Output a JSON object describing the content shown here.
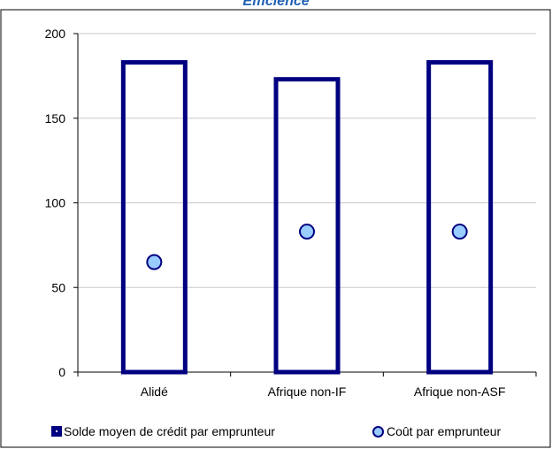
{
  "chart_data": {
    "type": "bar",
    "title": "Efficience",
    "categories": [
      "Alidé",
      "Afrique non-IF",
      "Afrique non-ASF"
    ],
    "series": [
      {
        "name": "Solde moyen de crédit par emprunteur",
        "kind": "bar",
        "values": [
          183,
          173,
          183
        ],
        "color": "#000080"
      },
      {
        "name": "Coût par emprunteur",
        "kind": "point",
        "values": [
          65,
          83,
          83
        ],
        "color": "#99ccff"
      }
    ],
    "ylim": [
      0,
      200
    ],
    "yticks": [
      "0",
      "50",
      "100",
      "150",
      "200"
    ],
    "grid": true,
    "legend": "bottom"
  }
}
